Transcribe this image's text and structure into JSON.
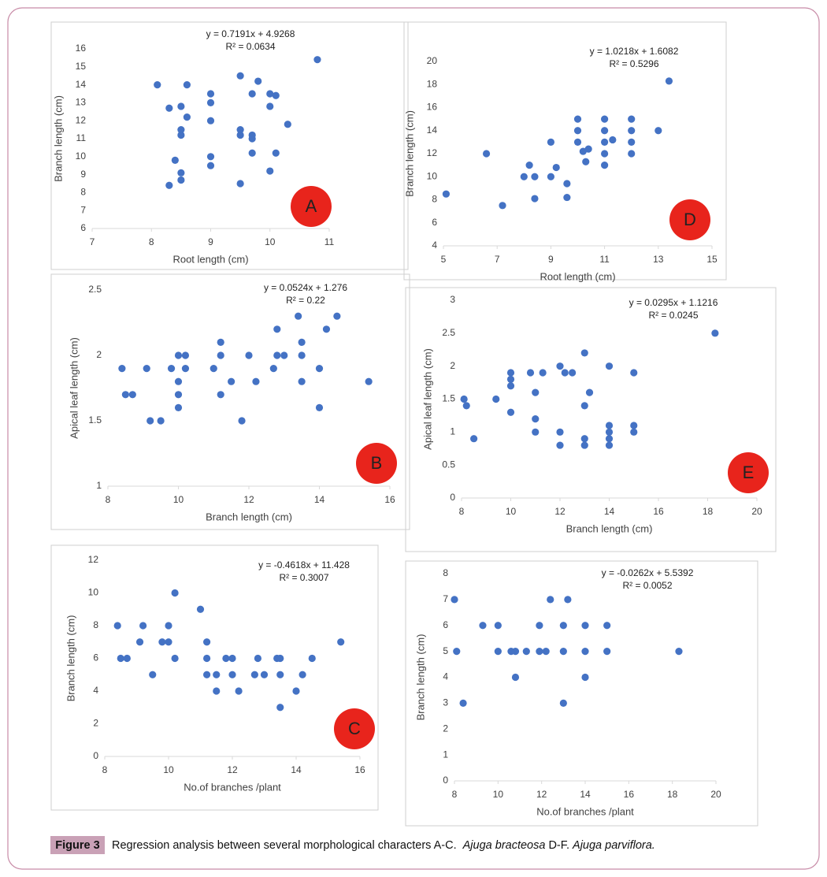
{
  "chart_data": [
    {
      "type": "scatter",
      "panel_label": "A",
      "x_label": "Root  length (cm)",
      "y_label": "Branch length (cm)",
      "annotations": [
        "y = 0.7191x + 4.9268",
        "R² = 0.0634"
      ],
      "color": "#4472c4",
      "grid": false,
      "x": [
        8.1,
        8.6,
        8.3,
        8.5,
        8.6,
        8.5,
        8.5,
        8.4,
        8.5,
        8.5,
        8.3,
        9,
        9,
        9,
        9,
        9,
        9.5,
        9.5,
        9.5,
        9.5,
        9.7,
        9.8,
        9.7,
        9.7,
        9.7,
        10,
        10,
        10.1,
        10.1,
        10,
        10.3,
        10.8
      ],
      "values": [
        14,
        14,
        12.7,
        12.8,
        12.2,
        11.5,
        11.2,
        9.8,
        9.1,
        8.7,
        8.4,
        13.5,
        13,
        12,
        10,
        9.5,
        14.5,
        11.5,
        11.2,
        8.5,
        13.5,
        14.2,
        11.2,
        11,
        10.2,
        13.5,
        12.8,
        13.4,
        10.2,
        9.2,
        11.8,
        15.4
      ],
      "xlim": [
        7,
        11
      ],
      "xticks": [
        7,
        8,
        9,
        10,
        11
      ],
      "ylim": [
        6,
        16
      ],
      "yticks": [
        6,
        7,
        8,
        9,
        10,
        11,
        12,
        13,
        14,
        15,
        16
      ]
    },
    {
      "type": "scatter",
      "panel_label": "B",
      "x_label": "Branch length (cm)",
      "y_label": "Apical leaf length (cm)",
      "annotations": [
        "y = 0.0524x + 1.276",
        "R² = 0.22"
      ],
      "color": "#4472c4",
      "grid": false,
      "x": [
        8.4,
        8.5,
        8.7,
        9.1,
        9.2,
        9.5,
        9.8,
        10,
        10.2,
        10,
        10,
        10,
        10.2,
        11,
        11.2,
        11.2,
        11.2,
        11.5,
        11.8,
        12,
        12.2,
        12.7,
        12.8,
        12.8,
        13,
        13.4,
        13.5,
        13.5,
        13.5,
        14,
        14,
        14.2,
        14.5,
        15.4
      ],
      "values": [
        1.9,
        1.7,
        1.7,
        1.9,
        1.5,
        1.5,
        1.9,
        2,
        2,
        1.8,
        1.7,
        1.6,
        1.9,
        1.9,
        2.1,
        2,
        1.7,
        1.8,
        1.5,
        2,
        1.8,
        1.9,
        2.2,
        2,
        2,
        2.3,
        2.1,
        2,
        1.8,
        1.9,
        1.6,
        2.2,
        2.3,
        1.8
      ],
      "xlim": [
        8,
        16
      ],
      "xticks": [
        8,
        10,
        12,
        14,
        16
      ],
      "ylim": [
        1,
        2.5
      ],
      "yticks": [
        1,
        1.5,
        2,
        2.5
      ]
    },
    {
      "type": "scatter",
      "panel_label": "C",
      "x_label": "No.of branches /plant",
      "y_label": "Branch length (cm)",
      "annotations": [
        "y = -0.4618x + 11.428",
        "R² = 0.3007"
      ],
      "color": "#4472c4",
      "grid": false,
      "x": [
        8.4,
        8.5,
        8.7,
        9.1,
        9.2,
        9.5,
        9.8,
        10,
        10,
        10.2,
        10.2,
        11,
        11.2,
        11.2,
        11.2,
        11.5,
        11.5,
        11.8,
        12,
        12,
        12.2,
        12.7,
        12.8,
        13,
        13.4,
        13.5,
        13.5,
        13.5,
        14,
        14.2,
        14.5,
        15.4
      ],
      "values": [
        8,
        6,
        6,
        7,
        8,
        5,
        7,
        8,
        7,
        10,
        6,
        9,
        7,
        6,
        5,
        5,
        4,
        6,
        6,
        5,
        4,
        5,
        6,
        5,
        6,
        6,
        5,
        3,
        4,
        5,
        6,
        7
      ],
      "xlim": [
        8,
        16
      ],
      "xticks": [
        8,
        10,
        12,
        14,
        16
      ],
      "ylim": [
        0,
        12
      ],
      "yticks": [
        0,
        2,
        4,
        6,
        8,
        10,
        12
      ]
    },
    {
      "type": "scatter",
      "panel_label": "D",
      "x_label": "Root  length (cm)",
      "y_label": "Branch length (cm)",
      "annotations": [
        "y = 1.0218x + 1.6082",
        "R² = 0.5296"
      ],
      "color": "#4472c4",
      "grid": false,
      "x": [
        5.1,
        6.6,
        7.2,
        8,
        8.2,
        8.4,
        8.4,
        9,
        9,
        9.2,
        9.6,
        9.6,
        10,
        10,
        10,
        10.2,
        10.4,
        10.3,
        11,
        11,
        11,
        11,
        11,
        11.3,
        12,
        12,
        12,
        12,
        13,
        13.4
      ],
      "values": [
        8.5,
        12,
        7.5,
        10,
        11,
        10,
        8.1,
        13,
        10,
        10.8,
        9.4,
        8.2,
        15,
        14,
        13,
        12.2,
        12.4,
        11.3,
        15,
        14,
        13,
        12,
        11,
        13.2,
        15,
        14,
        13,
        12,
        14,
        18.3
      ],
      "xlim": [
        5,
        15
      ],
      "xticks": [
        5,
        7,
        9,
        11,
        13,
        15
      ],
      "ylim": [
        4,
        20
      ],
      "yticks": [
        4,
        6,
        8,
        10,
        12,
        14,
        16,
        18,
        20
      ]
    },
    {
      "type": "scatter",
      "panel_label": "E",
      "x_label": "Branch length (cm)",
      "y_label": "Apical leaf length (cm)",
      "annotations": [
        "y = 0.0295x + 1.1216",
        "R² = 0.0245"
      ],
      "color": "#4472c4",
      "grid": false,
      "x": [
        8.1,
        8.2,
        8.5,
        9.4,
        10,
        10,
        10,
        10,
        10.8,
        11,
        11,
        11,
        11.3,
        12,
        12,
        12,
        12.2,
        12.5,
        13,
        13,
        13,
        13,
        13.2,
        14,
        14,
        14,
        14,
        14,
        15,
        15,
        15,
        18.3
      ],
      "values": [
        1.5,
        1.4,
        0.9,
        1.5,
        1.9,
        1.8,
        1.7,
        1.3,
        1.9,
        1.6,
        1.2,
        1,
        1.9,
        2,
        1,
        0.8,
        1.9,
        1.9,
        2.2,
        1.4,
        0.9,
        0.8,
        1.6,
        2,
        1.1,
        1,
        0.9,
        0.8,
        1.9,
        1.1,
        1,
        2.5
      ],
      "xlim": [
        8,
        20
      ],
      "xticks": [
        8,
        10,
        12,
        14,
        16,
        18,
        20
      ],
      "ylim": [
        0,
        3
      ],
      "yticks": [
        0,
        0.5,
        1,
        1.5,
        2,
        2.5,
        3
      ]
    },
    {
      "type": "scatter",
      "x_label": "No.of branches /plant",
      "y_label": "Branch length (cm)",
      "annotations": [
        "y = -0.0262x + 5.5392",
        "R² = 0.0052"
      ],
      "color": "#4472c4",
      "grid": false,
      "x": [
        8,
        8.1,
        8.4,
        9.3,
        10,
        10,
        10.6,
        10.8,
        10.8,
        11.3,
        11.9,
        11.9,
        12.2,
        12.4,
        13,
        13,
        13,
        13.2,
        14,
        14,
        14,
        15,
        15,
        18.3
      ],
      "values": [
        7,
        5,
        3,
        6,
        6,
        5,
        5,
        4,
        5,
        5,
        6,
        5,
        5,
        7,
        6,
        5,
        3,
        7,
        6,
        5,
        4,
        6,
        5,
        5
      ],
      "xlim": [
        8,
        20
      ],
      "xticks": [
        8,
        10,
        12,
        14,
        16,
        18,
        20
      ],
      "ylim": [
        0,
        8
      ],
      "yticks": [
        0,
        1,
        2,
        3,
        4,
        5,
        6,
        7,
        8
      ]
    }
  ],
  "caption": {
    "label": "Figure 3",
    "text_1": "Regression analysis between several morphological characters A-C.",
    "species_1": "Ajuga bracteosa",
    "text_2": "D-F.",
    "species_2": "Ajuga parviflora."
  }
}
